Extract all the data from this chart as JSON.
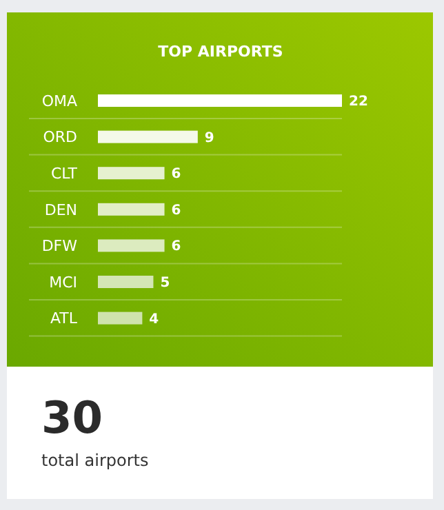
{
  "chart_data": {
    "type": "bar",
    "orientation": "horizontal",
    "title": "TOP AIRPORTS",
    "categories": [
      "OMA",
      "ORD",
      "CLT",
      "DEN",
      "DFW",
      "MCI",
      "ATL"
    ],
    "values": [
      22,
      9,
      6,
      6,
      6,
      5,
      4
    ],
    "colors": [
      "#ffffff",
      "#f4f9e8",
      "#e6f1d0",
      "#e2eec8",
      "#dcebbf",
      "#d4e6b4",
      "#cfe3ad"
    ],
    "data_labels": true,
    "annotations": [
      "30",
      "total airports"
    ]
  }
}
